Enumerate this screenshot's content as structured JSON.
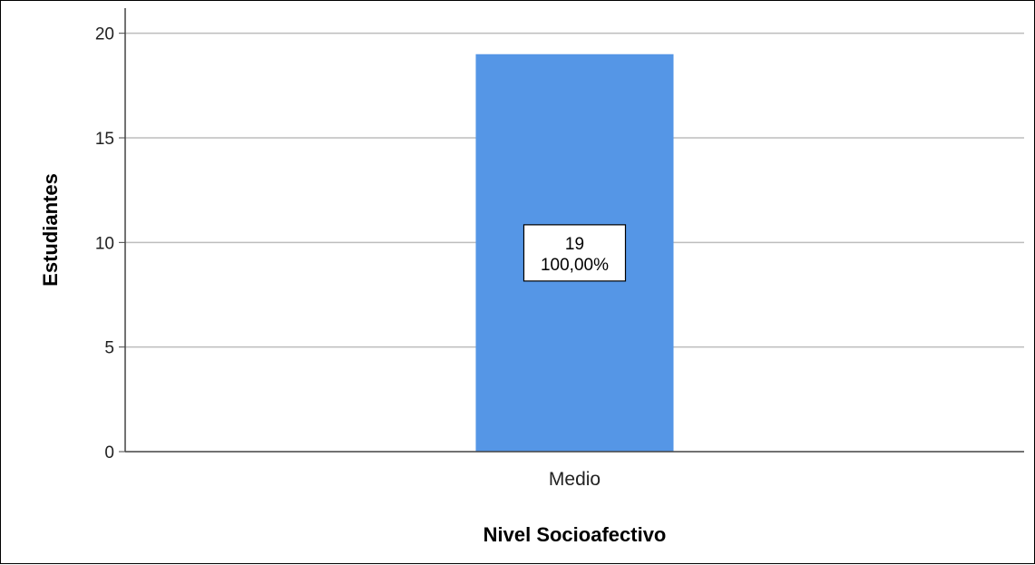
{
  "chart_data": {
    "type": "bar",
    "title": "",
    "xlabel": "Nivel Socioafectivo",
    "ylabel": "Estudiantes",
    "categories": [
      "Medio"
    ],
    "values": [
      19
    ],
    "data_labels": [
      {
        "count": "19",
        "percent": "100,00%"
      }
    ],
    "yticks": [
      0,
      5,
      10,
      15,
      20
    ],
    "ylim": [
      0,
      21.2
    ],
    "grid": true,
    "legend": "none",
    "bar_color": "#5596E6",
    "grid_color": "#bdbdbd",
    "axis_color": "#444444"
  }
}
